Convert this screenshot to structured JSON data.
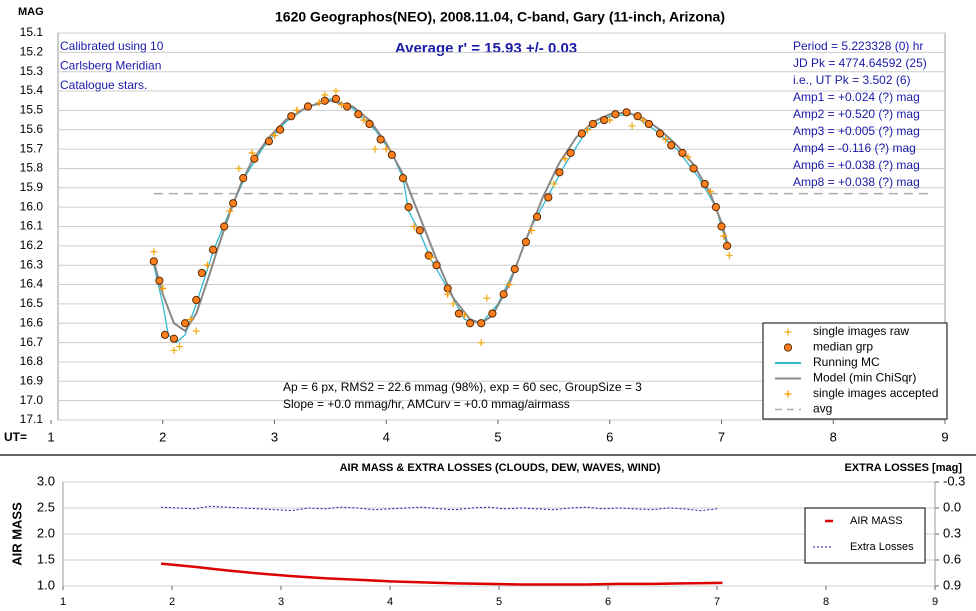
{
  "chart_data": [
    {
      "type": "scatter",
      "title": "1620 Geographos(NEO), 2008.11.04, C-band, Gary (11-inch, Arizona)",
      "y_label": "MAG",
      "x_label": "UT=",
      "left_note": [
        "Calibrated using 10",
        "Carlsberg Meridian",
        "Catalogue stars."
      ],
      "average": "Average r' = 15.93 +/- 0.03",
      "right_note": [
        "Period = 5.223328 (0) hr",
        "JD Pk = 4774.64592 (25)",
        "i.e., UT Pk = 3.502 (6)",
        "Amp1 = +0.024 (?) mag",
        "Amp2 = +0.520 (?) mag",
        "Amp3 = +0.005 (?) mag",
        "Amp4 = -0.116 (?) mag",
        "Amp6 = +0.038 (?) mag",
        "Amp8 = +0.038 (?) mag"
      ],
      "bottom_note": [
        "Ap = 6 px, RMS2 = 22.6 mmag (98%), exp = 60 sec, GroupSize = 3",
        "Slope = +0.0 mmag/hr, AMCurv = +0.0 mmag/airmass"
      ],
      "xlim": [
        1,
        9
      ],
      "xticks": [
        1,
        2,
        3,
        4,
        5,
        6,
        7,
        8,
        9
      ],
      "ylim": [
        17.1,
        15.1
      ],
      "yticks": [
        15.1,
        15.2,
        15.3,
        15.4,
        15.5,
        15.6,
        15.7,
        15.8,
        15.9,
        {
          "value": 16,
          "label": "16.0"
        },
        16.1,
        16.2,
        16.3,
        16.4,
        16.5,
        16.6,
        16.7,
        16.8,
        16.9,
        {
          "value": 17,
          "label": "17.0"
        },
        17.1
      ],
      "grid": true,
      "legend": "lower right",
      "series": [
        {
          "name": "single images raw",
          "color": "#f0b020",
          "marker": "plus",
          "x": [
            1.92,
            2.1,
            2.15,
            2.3,
            3.45,
            3.55,
            4.6,
            4.85,
            4.9,
            5.5,
            6.2,
            7.07,
            2.68,
            3.9
          ],
          "values": [
            16.23,
            16.74,
            16.72,
            16.64,
            15.42,
            15.4,
            16.5,
            16.7,
            16.47,
            15.88,
            15.58,
            16.25,
            15.8,
            15.7
          ]
        },
        {
          "name": "median grp",
          "color": "#ff7f1e",
          "marker": "circle",
          "x": [
            1.92,
            1.97,
            2.02,
            2.1,
            2.2,
            2.3,
            2.35,
            2.45,
            2.55,
            2.63,
            2.72,
            2.82,
            2.95,
            3.05,
            3.15,
            3.3,
            3.45,
            3.55,
            3.65,
            3.75,
            3.85,
            3.95,
            4.05,
            4.15,
            4.2,
            4.3,
            4.38,
            4.45,
            4.55,
            4.65,
            4.75,
            4.85,
            4.95,
            5.05,
            5.15,
            5.25,
            5.35,
            5.45,
            5.55,
            5.65,
            5.75,
            5.85,
            5.95,
            6.05,
            6.15,
            6.25,
            6.35,
            6.45,
            6.55,
            6.65,
            6.75,
            6.85,
            6.95,
            7.0,
            7.05
          ],
          "values": [
            16.28,
            16.38,
            16.66,
            16.68,
            16.6,
            16.48,
            16.34,
            16.22,
            16.1,
            15.98,
            15.85,
            15.75,
            15.66,
            15.6,
            15.53,
            15.48,
            15.45,
            15.44,
            15.48,
            15.52,
            15.57,
            15.65,
            15.73,
            15.85,
            16.0,
            16.12,
            16.25,
            16.3,
            16.42,
            16.55,
            16.6,
            16.6,
            16.55,
            16.45,
            16.32,
            16.18,
            16.05,
            15.95,
            15.82,
            15.72,
            15.62,
            15.57,
            15.55,
            15.52,
            15.51,
            15.53,
            15.57,
            15.62,
            15.68,
            15.72,
            15.8,
            15.88,
            16.0,
            16.1,
            16.2
          ]
        },
        {
          "name": "Running MC",
          "color": "#30b8d0",
          "marker": "line",
          "x": [
            1.92,
            2.0,
            2.05,
            2.12,
            2.2,
            2.3,
            2.45,
            2.6,
            2.75,
            2.9,
            3.1,
            3.3,
            3.5,
            3.7,
            3.9,
            4.05,
            4.15,
            4.2,
            4.3,
            4.4,
            4.55,
            4.7,
            4.85,
            5.0,
            5.15,
            5.3,
            5.45,
            5.6,
            5.8,
            6.0,
            6.2,
            6.4,
            6.6,
            6.8,
            6.95,
            7.05
          ],
          "values": [
            16.3,
            16.5,
            16.66,
            16.7,
            16.66,
            16.5,
            16.23,
            16.02,
            15.83,
            15.69,
            15.56,
            15.48,
            15.44,
            15.49,
            15.6,
            15.72,
            15.85,
            16.02,
            16.13,
            16.27,
            16.42,
            16.58,
            16.6,
            16.5,
            16.32,
            16.1,
            15.94,
            15.78,
            15.6,
            15.53,
            15.52,
            15.6,
            15.7,
            15.85,
            16.0,
            16.2
          ]
        },
        {
          "name": "Model (min ChiSqr)",
          "color": "#888888",
          "marker": "line",
          "x": [
            1.92,
            2.0,
            2.1,
            2.2,
            2.3,
            2.4,
            2.5,
            2.6,
            2.7,
            2.8,
            2.95,
            3.1,
            3.3,
            3.5,
            3.7,
            3.85,
            4.0,
            4.15,
            4.3,
            4.45,
            4.6,
            4.75,
            4.85,
            4.95,
            5.1,
            5.25,
            5.4,
            5.55,
            5.7,
            5.85,
            6.0,
            6.15,
            6.3,
            6.45,
            6.6,
            6.75,
            6.9,
            7.0,
            7.05
          ],
          "values": [
            16.28,
            16.45,
            16.6,
            16.64,
            16.55,
            16.38,
            16.2,
            16.03,
            15.88,
            15.76,
            15.64,
            15.55,
            15.48,
            15.45,
            15.48,
            15.55,
            15.67,
            15.83,
            16.05,
            16.27,
            16.47,
            16.58,
            16.6,
            16.56,
            16.4,
            16.17,
            15.95,
            15.77,
            15.64,
            15.56,
            15.52,
            15.51,
            15.54,
            15.6,
            15.68,
            15.78,
            15.93,
            16.08,
            16.18
          ]
        },
        {
          "name": "single images accepted",
          "color": "#ff9900",
          "marker": "plus",
          "x": [
            2.0,
            2.25,
            2.4,
            2.6,
            2.8,
            3.0,
            3.2,
            3.4,
            3.6,
            3.8,
            4.0,
            4.25,
            4.4,
            4.55,
            4.7,
            5.1,
            5.3,
            5.6,
            5.8,
            6.0,
            6.3,
            6.5,
            6.7,
            6.9,
            7.02
          ],
          "values": [
            16.42,
            16.58,
            16.3,
            16.02,
            15.72,
            15.63,
            15.5,
            15.46,
            15.47,
            15.55,
            15.7,
            16.1,
            16.26,
            16.45,
            16.56,
            16.4,
            16.12,
            15.75,
            15.6,
            15.55,
            15.55,
            15.65,
            15.74,
            15.92,
            16.15
          ]
        }
      ],
      "avg": {
        "name": "avg",
        "value": 15.93,
        "color": "#aaaaaa"
      }
    },
    {
      "type": "line",
      "title": "AIR MASS & EXTRA LOSSES (CLOUDS, DEW, WAVES, WIND)",
      "y_label": "AIR MASS",
      "y2_label": "EXTRA LOSSES [mag]",
      "xlim": [
        1,
        9
      ],
      "xticks": [
        1,
        2,
        3,
        4,
        5,
        6,
        7,
        8,
        9
      ],
      "ylim": [
        1,
        3
      ],
      "yticks": [
        {
          "value": 3,
          "label": "3.0"
        },
        2.5,
        {
          "value": 2,
          "label": "2.0"
        },
        1.5,
        {
          "value": 1,
          "label": "1.0"
        }
      ],
      "y2lim": [
        0.9,
        -0.3
      ],
      "y2ticks": [
        -0.3,
        {
          "value": 0,
          "label": "0.0"
        },
        0.3,
        0.6,
        0.9
      ],
      "grid": true,
      "legend": "upper right",
      "series": [
        {
          "name": "AIR MASS",
          "color": "#dd0000",
          "dash": "solid",
          "x": [
            1.9,
            2.2,
            2.5,
            2.8,
            3.1,
            3.4,
            3.7,
            4.0,
            4.3,
            4.6,
            4.9,
            5.2,
            5.5,
            5.8,
            6.1,
            6.4,
            6.7,
            7.05
          ],
          "values": [
            1.43,
            1.37,
            1.3,
            1.24,
            1.19,
            1.15,
            1.12,
            1.09,
            1.07,
            1.05,
            1.04,
            1.03,
            1.03,
            1.03,
            1.04,
            1.04,
            1.05,
            1.06
          ]
        },
        {
          "name": "Extra Losses",
          "color": "#1a1aa8",
          "dash": "dotted",
          "axis": "y2",
          "x": [
            1.9,
            2.05,
            2.2,
            2.35,
            2.5,
            2.65,
            2.8,
            2.95,
            3.1,
            3.25,
            3.4,
            3.55,
            3.7,
            3.85,
            4.0,
            4.15,
            4.3,
            4.45,
            4.6,
            4.75,
            4.9,
            5.05,
            5.2,
            5.35,
            5.5,
            5.65,
            5.8,
            5.95,
            6.1,
            6.25,
            6.4,
            6.55,
            6.7,
            6.85,
            7.0
          ],
          "values": [
            -0.01,
            0.0,
            0.01,
            -0.02,
            -0.01,
            0.0,
            0.01,
            0.02,
            0.03,
            0.0,
            0.01,
            -0.01,
            0.0,
            0.02,
            0.01,
            0.0,
            -0.01,
            0.01,
            0.02,
            0.0,
            -0.01,
            0.01,
            0.0,
            0.01,
            0.02,
            0.0,
            -0.01,
            0.01,
            0.0,
            0.01,
            0.02,
            0.0,
            0.01,
            0.03,
            0.01
          ]
        }
      ]
    }
  ]
}
